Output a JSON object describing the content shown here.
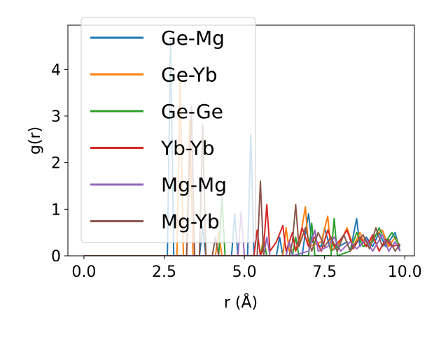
{
  "chart_data": {
    "type": "line",
    "xlabel": "r (Å)",
    "ylabel": "g(r)",
    "xlim": [
      -0.5,
      10.3
    ],
    "ylim": [
      0,
      4.95
    ],
    "xticks": [
      "0.0",
      "2.5",
      "5.0",
      "7.5",
      "10.0"
    ],
    "yticks": [
      "0",
      "1",
      "2",
      "3",
      "4"
    ],
    "grid": false,
    "legend_position": "upper-left",
    "series": [
      {
        "name": "Ge-Mg",
        "color": "#1f77b4",
        "points": [
          [
            0,
            0
          ],
          [
            2.6,
            0
          ],
          [
            2.7,
            4.6
          ],
          [
            2.8,
            0
          ],
          [
            3.6,
            0
          ],
          [
            3.7,
            0.6
          ],
          [
            3.8,
            0
          ],
          [
            4.6,
            0
          ],
          [
            4.7,
            0.9
          ],
          [
            4.8,
            0
          ],
          [
            5.1,
            0
          ],
          [
            5.2,
            2.6
          ],
          [
            5.3,
            0
          ],
          [
            6.0,
            0
          ],
          [
            6.1,
            0.4
          ],
          [
            6.2,
            0
          ],
          [
            6.8,
            0
          ],
          [
            6.9,
            0.5
          ],
          [
            7.0,
            0.9
          ],
          [
            7.1,
            0.3
          ],
          [
            7.4,
            0.2
          ],
          [
            7.5,
            0.6
          ],
          [
            7.7,
            0.1
          ],
          [
            8.2,
            0.3
          ],
          [
            8.3,
            0.1
          ],
          [
            8.5,
            0.8
          ],
          [
            8.6,
            0.2
          ],
          [
            8.8,
            0.4
          ],
          [
            9.0,
            0.2
          ],
          [
            9.2,
            0.5
          ],
          [
            9.4,
            0.2
          ],
          [
            9.6,
            0.4
          ],
          [
            9.7,
            0.5
          ],
          [
            9.85,
            0.1
          ]
        ]
      },
      {
        "name": "Ge-Yb",
        "color": "#ff7f0e",
        "points": [
          [
            0,
            0
          ],
          [
            2.9,
            0
          ],
          [
            3.0,
            3.8
          ],
          [
            3.1,
            0
          ],
          [
            3.2,
            0
          ],
          [
            3.3,
            2.9
          ],
          [
            3.4,
            0
          ],
          [
            4.1,
            0
          ],
          [
            4.2,
            0.5
          ],
          [
            4.3,
            0
          ],
          [
            5.5,
            0
          ],
          [
            5.6,
            0.4
          ],
          [
            5.7,
            0
          ],
          [
            6.2,
            0
          ],
          [
            6.3,
            0.6
          ],
          [
            6.4,
            0.1
          ],
          [
            6.7,
            0.2
          ],
          [
            6.9,
            1.05
          ],
          [
            7.0,
            0.2
          ],
          [
            7.4,
            0.3
          ],
          [
            7.6,
            0.85
          ],
          [
            7.7,
            0.1
          ],
          [
            8.0,
            0.3
          ],
          [
            8.2,
            0.6
          ],
          [
            8.4,
            0.2
          ],
          [
            8.6,
            0.5
          ],
          [
            8.8,
            0.2
          ],
          [
            9.0,
            0.4
          ],
          [
            9.3,
            0.55
          ],
          [
            9.5,
            0.2
          ],
          [
            9.7,
            0.4
          ],
          [
            9.85,
            0.2
          ]
        ]
      },
      {
        "name": "Ge-Ge",
        "color": "#2ca02c",
        "points": [
          [
            0,
            0
          ],
          [
            4.2,
            0
          ],
          [
            4.3,
            1.25
          ],
          [
            4.4,
            0
          ],
          [
            5.5,
            0
          ],
          [
            5.6,
            0.3
          ],
          [
            5.7,
            0
          ],
          [
            6.5,
            0
          ],
          [
            6.6,
            0.4
          ],
          [
            6.7,
            0
          ],
          [
            7.0,
            0
          ],
          [
            7.1,
            0.7
          ],
          [
            7.2,
            0
          ],
          [
            7.7,
            0
          ],
          [
            7.8,
            0.8
          ],
          [
            7.9,
            0
          ],
          [
            8.3,
            0.1
          ],
          [
            8.5,
            0.5
          ],
          [
            8.7,
            0.2
          ],
          [
            9.0,
            0.3
          ],
          [
            9.2,
            0.6
          ],
          [
            9.4,
            0.3
          ],
          [
            9.6,
            0.5
          ],
          [
            9.85,
            0.2
          ]
        ]
      },
      {
        "name": "Yb-Yb",
        "color": "#d62728",
        "points": [
          [
            0,
            0
          ],
          [
            5.3,
            0
          ],
          [
            5.4,
            0.55
          ],
          [
            5.5,
            0
          ],
          [
            5.6,
            0.2
          ],
          [
            5.7,
            1.1
          ],
          [
            5.8,
            0.1
          ],
          [
            6.0,
            0.3
          ],
          [
            6.2,
            0.65
          ],
          [
            6.3,
            0.1
          ],
          [
            6.5,
            0.5
          ],
          [
            6.6,
            0.1
          ],
          [
            6.8,
            0.6
          ],
          [
            7.0,
            0.2
          ],
          [
            7.2,
            0.4
          ],
          [
            7.4,
            0.1
          ],
          [
            7.6,
            0.55
          ],
          [
            7.8,
            0.2
          ],
          [
            8.0,
            0.35
          ],
          [
            8.2,
            0.55
          ],
          [
            8.4,
            0.15
          ],
          [
            8.6,
            0.4
          ],
          [
            8.8,
            0.2
          ],
          [
            9.0,
            0.45
          ],
          [
            9.2,
            0.1
          ],
          [
            9.4,
            0.35
          ],
          [
            9.6,
            0.2
          ],
          [
            9.85,
            0.25
          ]
        ]
      },
      {
        "name": "Mg-Mg",
        "color": "#9467bd",
        "points": [
          [
            0,
            0
          ],
          [
            4.8,
            0
          ],
          [
            4.9,
            0.95
          ],
          [
            5.0,
            0
          ],
          [
            5.6,
            0
          ],
          [
            5.7,
            0.4
          ],
          [
            5.8,
            0
          ],
          [
            6.3,
            0
          ],
          [
            6.4,
            0.3
          ],
          [
            6.5,
            0
          ],
          [
            7.0,
            0.1
          ],
          [
            7.2,
            0.55
          ],
          [
            7.3,
            0.1
          ],
          [
            7.6,
            0.2
          ],
          [
            7.8,
            0.4
          ],
          [
            8.0,
            0.1
          ],
          [
            8.3,
            0.3
          ],
          [
            8.5,
            0.15
          ],
          [
            8.8,
            0.35
          ],
          [
            9.0,
            0.1
          ],
          [
            9.3,
            0.45
          ],
          [
            9.5,
            0.1
          ],
          [
            9.7,
            0.3
          ],
          [
            9.85,
            0.1
          ]
        ]
      },
      {
        "name": "Mg-Yb",
        "color": "#8c564b",
        "points": [
          [
            0,
            0
          ],
          [
            3.2,
            0
          ],
          [
            3.35,
            3.2
          ],
          [
            3.45,
            0
          ],
          [
            3.6,
            0
          ],
          [
            3.7,
            2.8
          ],
          [
            3.8,
            0
          ],
          [
            4.0,
            0
          ],
          [
            4.1,
            0.4
          ],
          [
            4.2,
            0
          ],
          [
            5.4,
            0
          ],
          [
            5.5,
            1.6
          ],
          [
            5.6,
            0
          ],
          [
            6.4,
            0
          ],
          [
            6.5,
            0.3
          ],
          [
            6.6,
            1.1
          ],
          [
            6.7,
            0.2
          ],
          [
            6.9,
            0.6
          ],
          [
            7.1,
            0.1
          ],
          [
            7.3,
            0.5
          ],
          [
            7.5,
            0.2
          ],
          [
            7.7,
            0.4
          ],
          [
            7.9,
            0.1
          ],
          [
            8.1,
            0.45
          ],
          [
            8.3,
            0.1
          ],
          [
            8.5,
            0.3
          ],
          [
            8.7,
            0.45
          ],
          [
            8.9,
            0.15
          ],
          [
            9.1,
            0.6
          ],
          [
            9.3,
            0.2
          ],
          [
            9.5,
            0.35
          ],
          [
            9.7,
            0.1
          ],
          [
            9.85,
            0.25
          ]
        ]
      }
    ]
  }
}
